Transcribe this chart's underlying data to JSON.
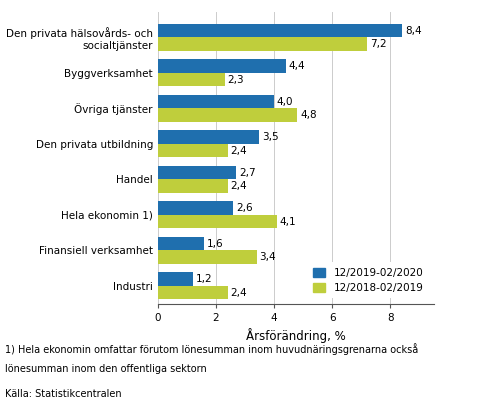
{
  "categories": [
    "Den privata hälsovårds- och\nsocialtjänster",
    "Byggverksamhet",
    "Övriga tjänster",
    "Den privata utbildning",
    "Handel",
    "Hela ekonomin 1)",
    "Finansiell verksamhet",
    "Industri"
  ],
  "series1_label": "12/2019-02/2020",
  "series2_label": "12/2018-02/2019",
  "series1_values": [
    8.4,
    4.4,
    4.0,
    3.5,
    2.7,
    2.6,
    1.6,
    1.2
  ],
  "series2_values": [
    7.2,
    2.3,
    4.8,
    2.4,
    2.4,
    4.1,
    3.4,
    2.4
  ],
  "color1": "#1F6FAE",
  "color2": "#BFCE3C",
  "xlabel": "Årsförändring, %",
  "xlim": [
    0,
    9.5
  ],
  "xticks": [
    0,
    2,
    4,
    6,
    8
  ],
  "footnote1": "1) Hela ekonomin omfattar förutom lönesumman inom huvudnäringsgrenarna också",
  "footnote2": "lönesumman inom den offentliga sektorn",
  "footnote3": "Källa: Statistikcentralen",
  "bar_height": 0.38,
  "label_fontsize": 7.5,
  "tick_fontsize": 7.5,
  "footnote_fontsize": 7.0,
  "xlabel_fontsize": 8.5,
  "legend_fontsize": 7.5
}
